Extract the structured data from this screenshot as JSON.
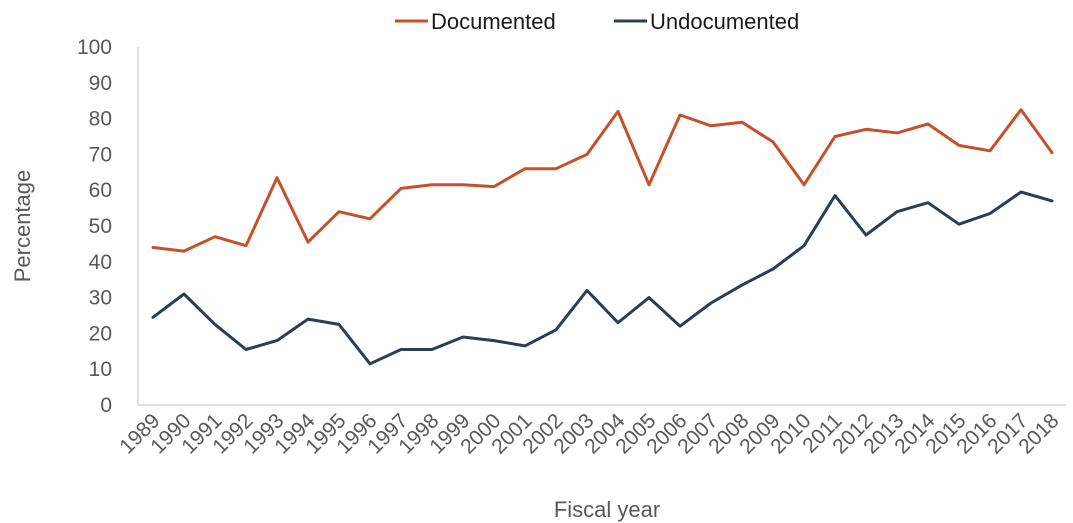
{
  "chart_data": {
    "type": "line",
    "title": "",
    "xlabel": "Fiscal year",
    "ylabel": "Percentage",
    "ylim": [
      0,
      100
    ],
    "yticks": [
      0,
      10,
      20,
      30,
      40,
      50,
      60,
      70,
      80,
      90,
      100
    ],
    "grid": false,
    "legend_position": "top-center",
    "categories": [
      "1989",
      "1990",
      "1991",
      "1992",
      "1993",
      "1994",
      "1995",
      "1996",
      "1997",
      "1998",
      "1999",
      "2000",
      "2001",
      "2002",
      "2003",
      "2004",
      "2005",
      "2006",
      "2007",
      "2008",
      "2009",
      "2010",
      "2011",
      "2012",
      "2013",
      "2014",
      "2015",
      "2016",
      "2017",
      "2018"
    ],
    "series": [
      {
        "name": "Documented",
        "color": "#C5512A",
        "values": [
          44,
          43,
          47,
          44.5,
          63.5,
          45.5,
          54,
          52,
          60.5,
          61.5,
          61.5,
          61,
          66,
          66,
          70,
          82,
          61.5,
          81,
          78,
          79,
          73.5,
          61.5,
          75,
          77,
          76,
          78.5,
          72.5,
          71,
          82.5,
          70.5
        ]
      },
      {
        "name": "Undocumented",
        "color": "#2D3E50",
        "values": [
          24.5,
          31,
          22.5,
          15.5,
          18,
          24,
          22.5,
          11.5,
          15.5,
          15.5,
          19,
          18,
          16.5,
          21,
          32,
          23,
          30,
          22,
          28.5,
          33.5,
          38,
          44.5,
          58.5,
          47.5,
          54,
          56.5,
          50.5,
          53.5,
          59.5,
          57
        ]
      }
    ]
  }
}
